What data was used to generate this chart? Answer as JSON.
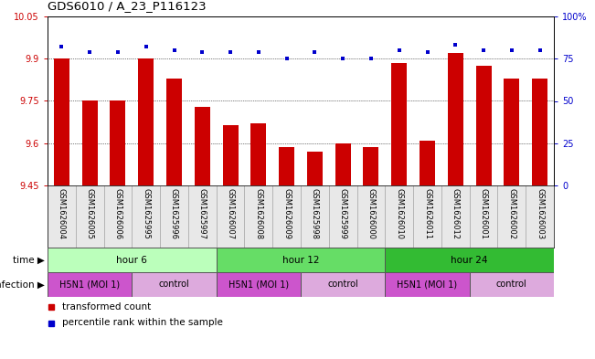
{
  "title": "GDS6010 / A_23_P116123",
  "samples": [
    "GSM1626004",
    "GSM1626005",
    "GSM1626006",
    "GSM1625995",
    "GSM1625996",
    "GSM1625997",
    "GSM1626007",
    "GSM1626008",
    "GSM1626009",
    "GSM1625998",
    "GSM1625999",
    "GSM1626000",
    "GSM1626010",
    "GSM1626011",
    "GSM1626012",
    "GSM1626001",
    "GSM1626002",
    "GSM1626003"
  ],
  "bar_values": [
    9.9,
    9.75,
    9.75,
    9.9,
    9.83,
    9.73,
    9.665,
    9.67,
    9.585,
    9.57,
    9.6,
    9.585,
    9.885,
    9.61,
    9.92,
    9.875,
    9.83,
    9.83
  ],
  "dot_values": [
    82,
    79,
    79,
    82,
    80,
    79,
    79,
    79,
    75,
    79,
    75,
    75,
    80,
    79,
    83,
    80,
    80,
    80
  ],
  "bar_color": "#cc0000",
  "dot_color": "#0000cc",
  "ylim_left": [
    9.45,
    10.05
  ],
  "ylim_right": [
    0,
    100
  ],
  "yticks_left": [
    9.45,
    9.6,
    9.75,
    9.9,
    10.05
  ],
  "yticks_right": [
    0,
    25,
    50,
    75,
    100
  ],
  "ytick_labels_right": [
    "0",
    "25",
    "50",
    "75",
    "100%"
  ],
  "grid_lines": [
    9.6,
    9.75,
    9.9
  ],
  "time_groups": [
    {
      "label": "hour 6",
      "start": 0,
      "end": 6,
      "color": "#bbffbb"
    },
    {
      "label": "hour 12",
      "start": 6,
      "end": 12,
      "color": "#66dd66"
    },
    {
      "label": "hour 24",
      "start": 12,
      "end": 18,
      "color": "#33bb33"
    }
  ],
  "infection_groups": [
    {
      "label": "H5N1 (MOI 1)",
      "start": 0,
      "end": 3,
      "color": "#cc55cc"
    },
    {
      "label": "control",
      "start": 3,
      "end": 6,
      "color": "#ddaadd"
    },
    {
      "label": "H5N1 (MOI 1)",
      "start": 6,
      "end": 9,
      "color": "#cc55cc"
    },
    {
      "label": "control",
      "start": 9,
      "end": 12,
      "color": "#ddaadd"
    },
    {
      "label": "H5N1 (MOI 1)",
      "start": 12,
      "end": 15,
      "color": "#cc55cc"
    },
    {
      "label": "control",
      "start": 15,
      "end": 18,
      "color": "#ddaadd"
    }
  ],
  "time_label": "time",
  "infection_label": "infection",
  "legend_bar_label": "transformed count",
  "legend_dot_label": "percentile rank within the sample",
  "bar_width": 0.55
}
